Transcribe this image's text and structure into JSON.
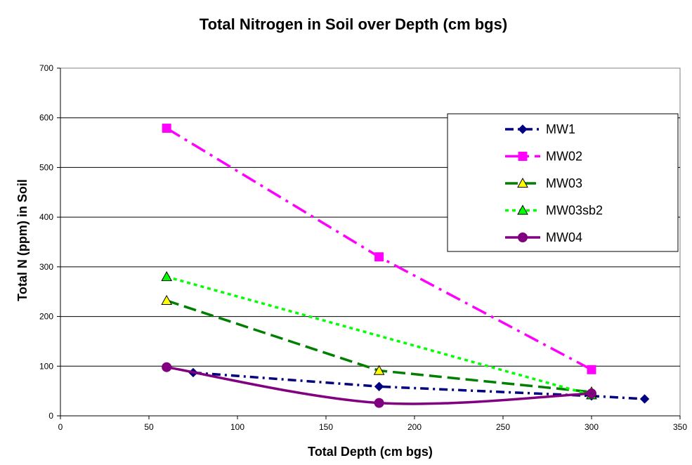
{
  "chart_data": {
    "type": "line",
    "title": "Total Nitrogen in Soil over Depth (cm bgs)",
    "xlabel": "Total Depth (cm bgs)",
    "ylabel": "Total N (ppm) in Soil",
    "xlim": [
      0,
      350
    ],
    "ylim": [
      0,
      700
    ],
    "xticks": [
      0,
      50,
      100,
      150,
      200,
      250,
      300,
      350
    ],
    "yticks": [
      0,
      100,
      200,
      300,
      400,
      500,
      600,
      700
    ],
    "grid": "horizontal",
    "legend_position": "right",
    "series": [
      {
        "name": "MW1",
        "color": "#000080",
        "dash": "dash-dot",
        "smooth": false,
        "marker": "diamond",
        "marker_fill": "#000080",
        "points": [
          [
            75,
            87
          ],
          [
            180,
            59
          ],
          [
            300,
            40
          ],
          [
            330,
            34
          ]
        ]
      },
      {
        "name": "MW02",
        "color": "#FF00FF",
        "dash": "long-dash-dot",
        "smooth": false,
        "marker": "square",
        "marker_fill": "#FF00FF",
        "points": [
          [
            60,
            579
          ],
          [
            180,
            320
          ],
          [
            300,
            93
          ]
        ]
      },
      {
        "name": "MW03",
        "color": "#008000",
        "dash": "long-dash",
        "smooth": false,
        "marker": "triangle",
        "marker_fill": "#FFFF00",
        "points": [
          [
            60,
            232
          ],
          [
            180,
            91
          ],
          [
            300,
            48
          ]
        ]
      },
      {
        "name": "MW03sb2",
        "color": "#00FF00",
        "dash": "dotted",
        "smooth": false,
        "marker": "triangle",
        "marker_fill": "#00FF00",
        "points": [
          [
            60,
            280
          ],
          [
            300,
            42
          ]
        ]
      },
      {
        "name": "MW04",
        "color": "#800080",
        "dash": "solid",
        "smooth": true,
        "marker": "circle",
        "marker_fill": "#800080",
        "points": [
          [
            60,
            98
          ],
          [
            180,
            26
          ],
          [
            300,
            45
          ]
        ]
      }
    ]
  }
}
